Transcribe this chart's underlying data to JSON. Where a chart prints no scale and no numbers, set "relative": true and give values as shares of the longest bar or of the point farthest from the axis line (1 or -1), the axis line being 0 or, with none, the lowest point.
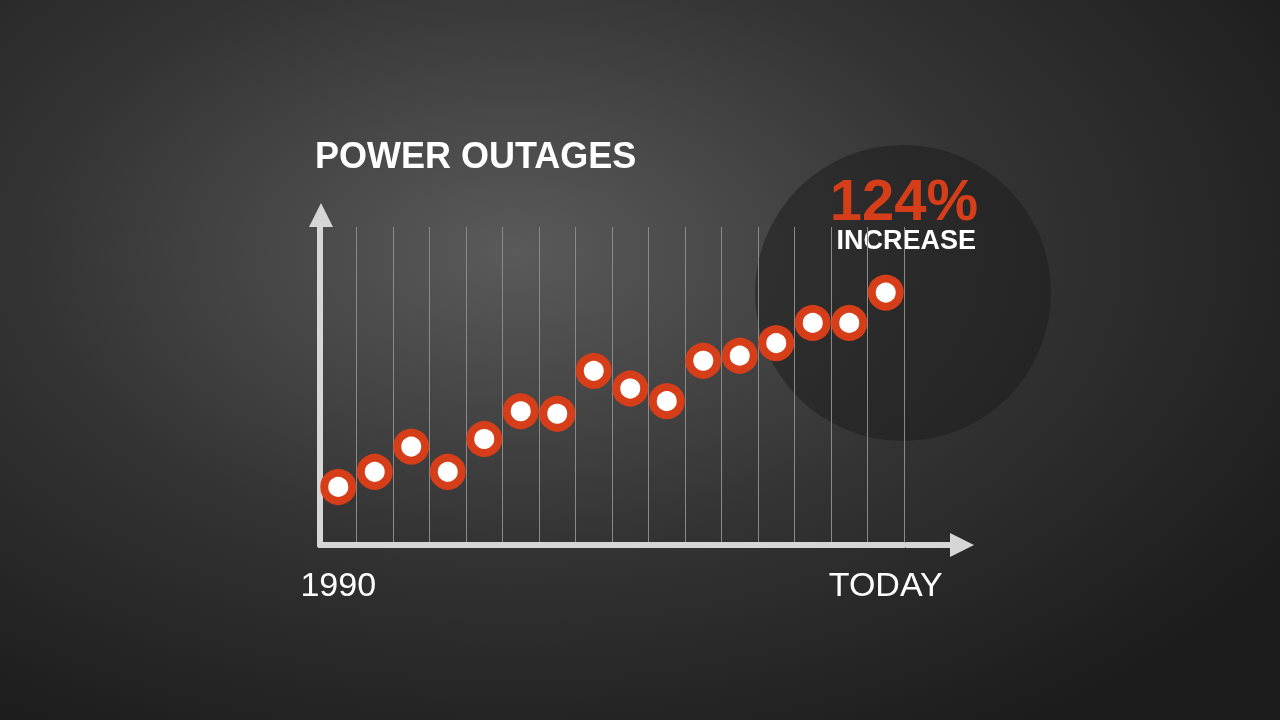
{
  "chart_data": {
    "type": "scatter",
    "title": "POWER OUTAGES",
    "relative": true,
    "categories": [
      "1990",
      null,
      null,
      null,
      null,
      null,
      null,
      null,
      null,
      null,
      null,
      null,
      null,
      null,
      null,
      "TODAY"
    ],
    "series": [
      {
        "color": "#d63e1a",
        "values": [
          0.23,
          0.29,
          0.39,
          0.29,
          0.42,
          0.53,
          0.52,
          0.69,
          0.62,
          0.57,
          0.73,
          0.75,
          0.8,
          0.88,
          0.88,
          1
        ]
      }
    ],
    "annotations": [
      "124%",
      "INCREASE"
    ],
    "grid": "x",
    "marker": "circle"
  }
}
